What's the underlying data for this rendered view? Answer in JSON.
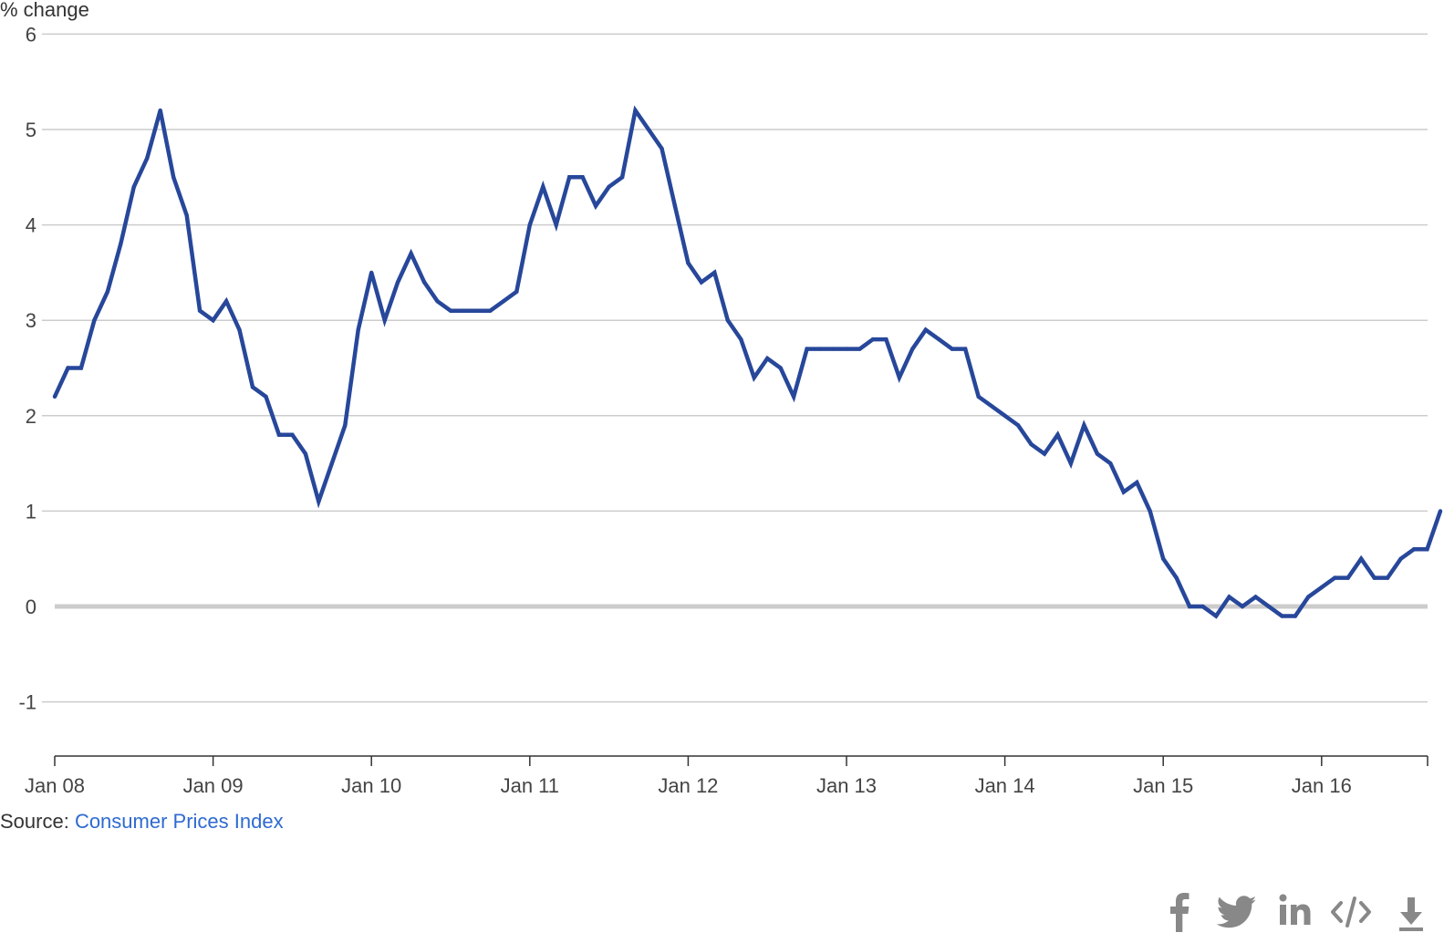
{
  "chart_data": {
    "type": "line",
    "ylabel": "% change",
    "xlabel": "",
    "ylim": [
      -1.5,
      6
    ],
    "yticks": [
      -1,
      0,
      1,
      2,
      3,
      4,
      5,
      6
    ],
    "xtick_labels": [
      "Jan 08",
      "Jan 09",
      "Jan 10",
      "Jan 11",
      "Jan 12",
      "Jan 13",
      "Jan 14",
      "Jan 15",
      "Jan 16"
    ],
    "x_start": "Jan 08",
    "x_end": "Aug 16",
    "x_frequency": "monthly",
    "grid": true,
    "legend": "none",
    "line_color": "#27479a",
    "series": [
      {
        "values": [
          2.2,
          2.5,
          2.5,
          3.0,
          3.3,
          3.8,
          4.4,
          4.7,
          5.2,
          4.5,
          4.1,
          3.1,
          3.0,
          3.2,
          2.9,
          2.3,
          2.2,
          1.8,
          1.8,
          1.6,
          1.1,
          1.5,
          1.9,
          2.9,
          3.5,
          3.0,
          3.4,
          3.7,
          3.4,
          3.2,
          3.1,
          3.1,
          3.1,
          3.1,
          3.2,
          3.3,
          4.0,
          4.4,
          4.0,
          4.5,
          4.5,
          4.2,
          4.4,
          4.5,
          5.2,
          5.0,
          4.8,
          4.2,
          3.6,
          3.4,
          3.5,
          3.0,
          2.8,
          2.4,
          2.6,
          2.5,
          2.2,
          2.7,
          2.7,
          2.7,
          2.7,
          2.7,
          2.8,
          2.8,
          2.4,
          2.7,
          2.9,
          2.8,
          2.7,
          2.7,
          2.2,
          2.1,
          2.0,
          1.9,
          1.7,
          1.6,
          1.8,
          1.5,
          1.9,
          1.6,
          1.5,
          1.2,
          1.3,
          1.0,
          0.5,
          0.3,
          0.0,
          0.0,
          -0.1,
          0.1,
          0.0,
          0.1,
          0.0,
          -0.1,
          -0.1,
          0.1,
          0.2,
          0.3,
          0.3,
          0.5,
          0.3,
          0.3,
          0.5,
          0.6,
          0.6,
          1.0
        ]
      }
    ]
  },
  "source": {
    "prefix": "Source: ",
    "link_text": "Consumer Prices Index"
  },
  "share": {
    "icons": [
      "facebook-icon",
      "twitter-icon",
      "linkedin-icon",
      "embed-icon",
      "download-icon"
    ],
    "icon_color": "#888888"
  }
}
